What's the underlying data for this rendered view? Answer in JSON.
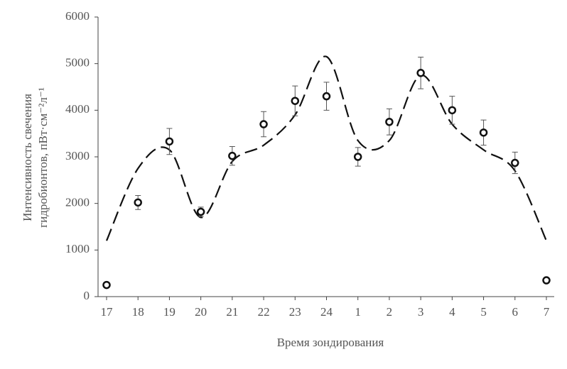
{
  "chart_data": {
    "type": "scatter",
    "xlabel": "Время зондирования",
    "ylabel": [
      "Интенсивность свечения",
      "гидробионтов, пВт·см⁻²л⁻¹"
    ],
    "categories": [
      "17",
      "18",
      "19",
      "20",
      "21",
      "22",
      "23",
      "24",
      "1",
      "2",
      "3",
      "4",
      "5",
      "6",
      "7"
    ],
    "values": [
      250,
      2020,
      3330,
      1820,
      3020,
      3700,
      4200,
      4300,
      3000,
      3750,
      4800,
      4000,
      3520,
      2870,
      350
    ],
    "errors": [
      50,
      150,
      280,
      100,
      200,
      270,
      320,
      300,
      200,
      280,
      340,
      300,
      270,
      230,
      50
    ],
    "fit_values": [
      1200,
      2750,
      3150,
      1700,
      2900,
      3250,
      3900,
      5150,
      3350,
      3350,
      4750,
      3700,
      3150,
      2700,
      1200
    ],
    "color": "#111",
    "ylim": [
      0,
      6000
    ],
    "yticks": [
      0,
      1000,
      2000,
      3000,
      4000,
      5000,
      6000
    ]
  }
}
